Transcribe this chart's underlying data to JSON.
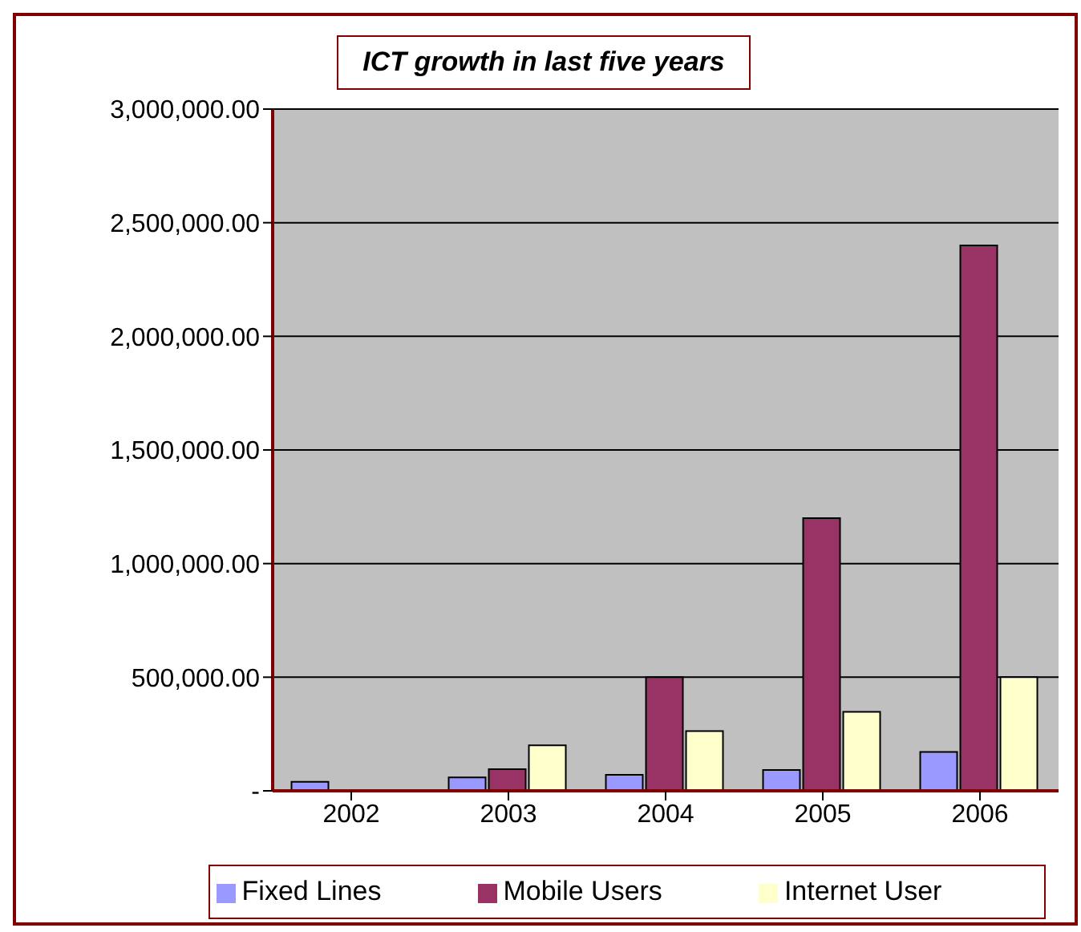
{
  "chart_data": {
    "type": "bar",
    "title": "ICT growth in last five years",
    "categories": [
      "2002",
      "2003",
      "2004",
      "2005",
      "2006"
    ],
    "series": [
      {
        "name": "Fixed Lines",
        "color": "#9999ff",
        "values": [
          40000,
          59000,
          71000,
          92000,
          171000
        ]
      },
      {
        "name": "Mobile Users",
        "color": "#993366",
        "values": [
          0,
          95000,
          500000,
          1200000,
          2400000
        ]
      },
      {
        "name": "Internet User",
        "color": "#ffffcc",
        "values": [
          0,
          200000,
          263000,
          348000,
          500000
        ]
      }
    ],
    "ylim": [
      0,
      3000000
    ],
    "yticks": [
      {
        "value": 0,
        "label": "-"
      },
      {
        "value": 500000,
        "label": "500,000.00"
      },
      {
        "value": 1000000,
        "label": "1,000,000.00"
      },
      {
        "value": 1500000,
        "label": "1,500,000.00"
      },
      {
        "value": 2000000,
        "label": "2,000,000.00"
      },
      {
        "value": 2500000,
        "label": "2,500,000.00"
      },
      {
        "value": 3000000,
        "label": "3,000,000.00"
      }
    ],
    "grid": "y",
    "legend": "bottom"
  }
}
